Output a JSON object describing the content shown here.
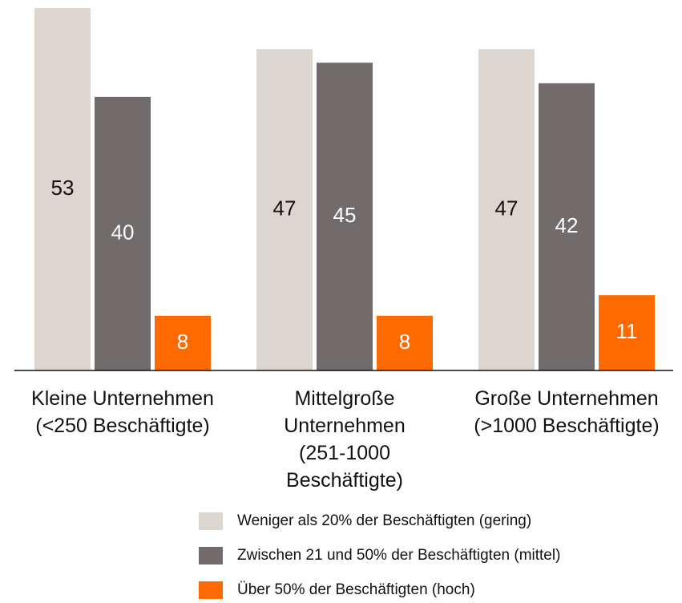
{
  "chart_data": {
    "type": "bar",
    "categories": [
      "Kleine Unternehmen (<250 Beschäftigte)",
      "Mittelgroße Unternehmen (251-1000 Beschäftigte)",
      "Große Unternehmen (>1000 Beschäftigte)"
    ],
    "series": [
      {
        "name": "Weniger als 20% der Beschäftigten (gering)",
        "color": "#ddd5cf",
        "values": [
          53,
          47,
          47
        ]
      },
      {
        "name": "Zwischen 21 und 50% der Beschäftigten (mittel)",
        "color": "#716c6b",
        "values": [
          40,
          45,
          42
        ]
      },
      {
        "name": "Über 50% der Beschäftigten (hoch)",
        "color": "#ff6a00",
        "values": [
          8,
          8,
          11
        ]
      }
    ]
  }
}
